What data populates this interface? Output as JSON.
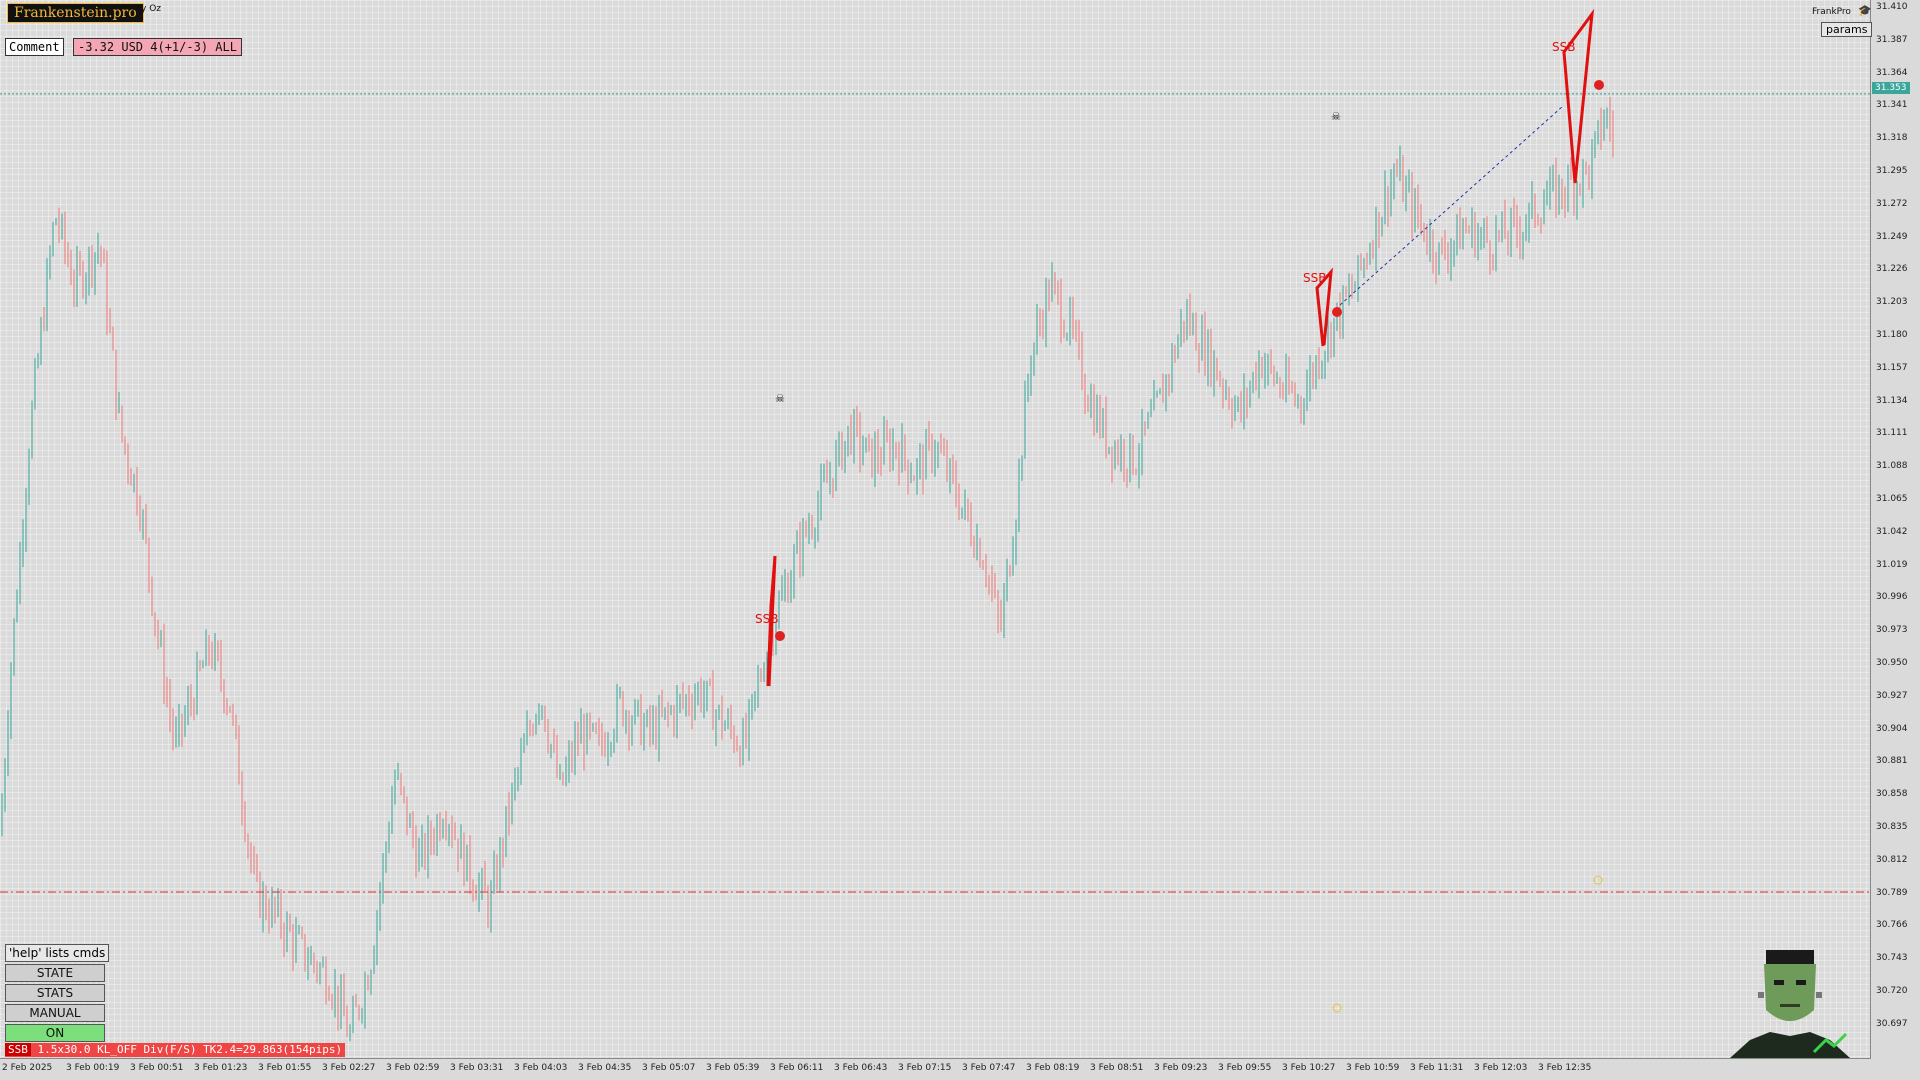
{
  "header": {
    "brand": "Frankenstein.pro",
    "symbol_label": "roy Oz",
    "comment_label": "Comment",
    "pl_text": "-3.32 USD 4(+1/-3) ALL",
    "frankpro_label": "FrankPro",
    "params_label": "params"
  },
  "left_panel": {
    "help_label": "'help' lists cmds",
    "buttons": [
      "STATE",
      "STATS",
      "MANUAL",
      "ON"
    ],
    "on_color": "#7be07b",
    "status_tag": "SSB",
    "status_text": "1.5x30.0 KL_OFF Div(F/S) TK2.4=29.863(154pips)"
  },
  "price_axis": {
    "labels": [
      "31.410",
      "31.387",
      "31.364",
      "31.341",
      "31.318",
      "31.295",
      "31.272",
      "31.249",
      "31.226",
      "31.203",
      "31.180",
      "31.157",
      "31.134",
      "31.111",
      "31.088",
      "31.065",
      "31.042",
      "31.019",
      "30.996",
      "30.973",
      "30.950",
      "30.927",
      "30.904",
      "30.881",
      "30.858",
      "30.835",
      "30.812",
      "30.789",
      "30.766",
      "30.743",
      "30.720",
      "30.697"
    ],
    "current_price": "31.353"
  },
  "time_axis": {
    "labels": [
      "2 Feb 2025",
      "3 Feb 00:19",
      "3 Feb 00:51",
      "3 Feb 01:23",
      "3 Feb 01:55",
      "3 Feb 02:27",
      "3 Feb 02:59",
      "3 Feb 03:31",
      "3 Feb 04:03",
      "3 Feb 04:35",
      "3 Feb 05:07",
      "3 Feb 05:39",
      "3 Feb 06:11",
      "3 Feb 06:43",
      "3 Feb 07:15",
      "3 Feb 07:47",
      "3 Feb 08:19",
      "3 Feb 08:51",
      "3 Feb 09:23",
      "3 Feb 09:55",
      "3 Feb 10:27",
      "3 Feb 10:59",
      "3 Feb 11:31",
      "3 Feb 12:03",
      "3 Feb 12:35"
    ]
  },
  "chart_data": {
    "type": "candlestick",
    "title": "",
    "price_range": [
      30.685,
      31.418
    ],
    "price_path": [
      [
        0,
        30.84
      ],
      [
        10,
        30.95
      ],
      [
        30,
        31.12
      ],
      [
        55,
        31.27
      ],
      [
        75,
        31.22
      ],
      [
        100,
        31.25
      ],
      [
        120,
        31.12
      ],
      [
        140,
        31.07
      ],
      [
        155,
        30.99
      ],
      [
        175,
        30.9
      ],
      [
        190,
        30.93
      ],
      [
        210,
        30.97
      ],
      [
        230,
        30.93
      ],
      [
        255,
        30.8
      ],
      [
        280,
        30.78
      ],
      [
        300,
        30.76
      ],
      [
        330,
        30.74
      ],
      [
        350,
        30.7
      ],
      [
        370,
        30.75
      ],
      [
        395,
        30.88
      ],
      [
        420,
        30.82
      ],
      [
        445,
        30.86
      ],
      [
        465,
        30.82
      ],
      [
        490,
        30.79
      ],
      [
        510,
        30.86
      ],
      [
        540,
        30.94
      ],
      [
        560,
        30.87
      ],
      [
        580,
        30.91
      ],
      [
        600,
        30.9
      ],
      [
        620,
        30.93
      ],
      [
        650,
        30.91
      ],
      [
        680,
        30.93
      ],
      [
        700,
        30.94
      ],
      [
        720,
        30.92
      ],
      [
        745,
        30.9
      ],
      [
        760,
        30.95
      ],
      [
        775,
        30.99
      ],
      [
        800,
        31.04
      ],
      [
        825,
        31.08
      ],
      [
        850,
        31.12
      ],
      [
        870,
        31.1
      ],
      [
        895,
        31.11
      ],
      [
        915,
        31.09
      ],
      [
        935,
        31.11
      ],
      [
        960,
        31.07
      ],
      [
        985,
        31.03
      ],
      [
        1000,
        30.98
      ],
      [
        1015,
        31.06
      ],
      [
        1030,
        31.17
      ],
      [
        1050,
        31.22
      ],
      [
        1070,
        31.19
      ],
      [
        1090,
        31.14
      ],
      [
        1110,
        31.11
      ],
      [
        1135,
        31.1
      ],
      [
        1160,
        31.14
      ],
      [
        1185,
        31.2
      ],
      [
        1210,
        31.17
      ],
      [
        1240,
        31.13
      ],
      [
        1260,
        31.17
      ],
      [
        1280,
        31.15
      ],
      [
        1300,
        31.14
      ],
      [
        1330,
        31.19
      ],
      [
        1355,
        31.22
      ],
      [
        1375,
        31.26
      ],
      [
        1395,
        31.3
      ],
      [
        1415,
        31.27
      ],
      [
        1440,
        31.24
      ],
      [
        1465,
        31.26
      ],
      [
        1490,
        31.25
      ],
      [
        1520,
        31.26
      ],
      [
        1545,
        31.28
      ],
      [
        1570,
        31.29
      ],
      [
        1590,
        31.3
      ],
      [
        1605,
        31.34
      ],
      [
        1620,
        31.31
      ]
    ],
    "horizontal_lines": [
      {
        "price": 31.353,
        "style": "dotted",
        "color": "#2e9e8e"
      },
      {
        "price": 30.8,
        "style": "dashdot",
        "color": "#e03030"
      }
    ],
    "annotations": [
      "SSB",
      "SSB",
      "SSB"
    ],
    "colors": {
      "bull": "#3aa79a",
      "bear": "#ef7b7b",
      "signal": "#e01010"
    }
  }
}
